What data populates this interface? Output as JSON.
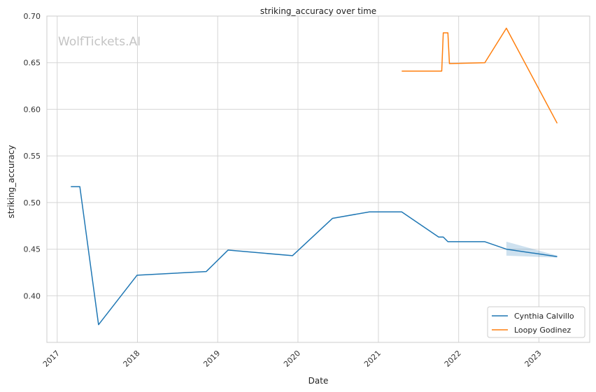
{
  "chart_data": {
    "type": "line",
    "title": "striking_accuracy over time",
    "xlabel": "Date",
    "ylabel": "striking_accuracy",
    "watermark": "WolfTickets.AI",
    "x_ticks": [
      "2017",
      "2018",
      "2019",
      "2020",
      "2021",
      "2022",
      "2023"
    ],
    "y_ticks": [
      "0.40",
      "0.45",
      "0.50",
      "0.55",
      "0.60",
      "0.65",
      "0.70"
    ],
    "xlim": [
      "2016-11-15",
      "2023-08-20"
    ],
    "ylim": [
      0.35,
      0.7
    ],
    "grid": true,
    "legend_position": "lower-right",
    "series": [
      {
        "name": "Cynthia Calvillo",
        "color": "#1f77b4",
        "points": [
          {
            "date": "2017-03-04",
            "y": 0.517
          },
          {
            "date": "2017-04-14",
            "y": 0.517
          },
          {
            "date": "2017-07-08",
            "y": 0.369
          },
          {
            "date": "2017-12-30",
            "y": 0.422
          },
          {
            "date": "2018-11-10",
            "y": 0.426
          },
          {
            "date": "2019-02-17",
            "y": 0.449
          },
          {
            "date": "2019-12-07",
            "y": 0.443
          },
          {
            "date": "2020-06-06",
            "y": 0.483
          },
          {
            "date": "2020-11-21",
            "y": 0.49
          },
          {
            "date": "2021-04-17",
            "y": 0.49
          },
          {
            "date": "2021-10-02",
            "y": 0.463
          },
          {
            "date": "2021-10-23",
            "y": 0.463
          },
          {
            "date": "2021-11-13",
            "y": 0.458
          },
          {
            "date": "2022-04-30",
            "y": 0.458
          },
          {
            "date": "2022-08-06",
            "y": 0.45
          },
          {
            "date": "2023-03-25",
            "y": 0.442
          }
        ],
        "confidence_band": [
          {
            "date": "2022-08-06",
            "low": 0.443,
            "high": 0.458
          },
          {
            "date": "2023-03-25",
            "low": 0.441,
            "high": 0.443
          }
        ]
      },
      {
        "name": "Loopy Godinez",
        "color": "#ff7f0e",
        "points": [
          {
            "date": "2021-04-17",
            "y": 0.641
          },
          {
            "date": "2021-10-16",
            "y": 0.641
          },
          {
            "date": "2021-10-23",
            "y": 0.682
          },
          {
            "date": "2021-11-13",
            "y": 0.682
          },
          {
            "date": "2021-11-20",
            "y": 0.649
          },
          {
            "date": "2022-04-30",
            "y": 0.65
          },
          {
            "date": "2022-08-06",
            "y": 0.687
          },
          {
            "date": "2023-03-25",
            "y": 0.585
          }
        ]
      }
    ]
  }
}
